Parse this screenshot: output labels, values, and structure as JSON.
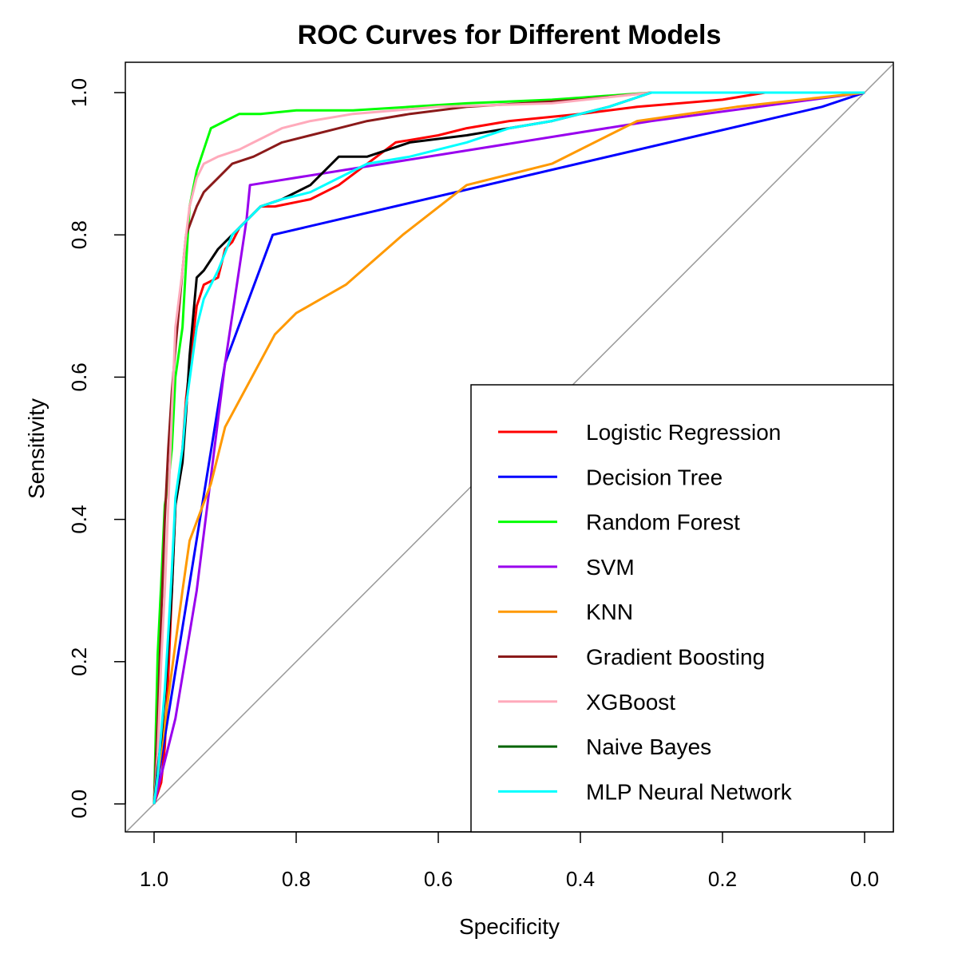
{
  "chart_data": {
    "type": "line",
    "title": "ROC Curves for Different Models",
    "xlabel": "Specificity",
    "ylabel": "Sensitivity",
    "xlim": [
      1.0,
      0.0
    ],
    "ylim": [
      0.0,
      1.0
    ],
    "x_reversed": true,
    "x_ticks": [
      "1.0",
      "0.8",
      "0.6",
      "0.4",
      "0.2",
      "0.0"
    ],
    "y_ticks": [
      "0.0",
      "0.2",
      "0.4",
      "0.6",
      "0.8",
      "1.0"
    ],
    "legend_position": "bottom-right",
    "reference_line": {
      "from": [
        1.0,
        0.0
      ],
      "to": [
        0.0,
        1.0
      ],
      "color": "#999999"
    },
    "series": [
      {
        "name": "Logistic Regression",
        "color": "#ff0000",
        "specificity": [
          1.0,
          0.99,
          0.985,
          0.98,
          0.975,
          0.97,
          0.96,
          0.955,
          0.94,
          0.93,
          0.91,
          0.9,
          0.89,
          0.88,
          0.87,
          0.85,
          0.83,
          0.78,
          0.74,
          0.7,
          0.66,
          0.6,
          0.56,
          0.5,
          0.4,
          0.32,
          0.2,
          0.14,
          0.0
        ],
        "sensitivity": [
          0.0,
          0.03,
          0.08,
          0.18,
          0.3,
          0.42,
          0.5,
          0.57,
          0.7,
          0.73,
          0.74,
          0.78,
          0.79,
          0.81,
          0.82,
          0.84,
          0.84,
          0.85,
          0.87,
          0.9,
          0.93,
          0.94,
          0.95,
          0.96,
          0.97,
          0.98,
          0.99,
          1.0,
          1.0
        ]
      },
      {
        "name": "Decision Tree",
        "color": "#0000ff",
        "specificity": [
          1.0,
          0.9,
          0.833,
          0.06,
          0.0
        ],
        "sensitivity": [
          0.0,
          0.62,
          0.8,
          0.98,
          1.0
        ]
      },
      {
        "name": "Random Forest",
        "color": "#00ff00",
        "specificity": [
          1.0,
          0.995,
          0.99,
          0.985,
          0.98,
          0.975,
          0.97,
          0.96,
          0.955,
          0.95,
          0.94,
          0.93,
          0.92,
          0.9,
          0.88,
          0.85,
          0.8,
          0.72,
          0.64,
          0.56,
          0.44,
          0.3,
          0.0
        ],
        "sensitivity": [
          0.0,
          0.21,
          0.31,
          0.42,
          0.45,
          0.5,
          0.6,
          0.67,
          0.76,
          0.84,
          0.89,
          0.92,
          0.95,
          0.96,
          0.97,
          0.97,
          0.975,
          0.975,
          0.98,
          0.985,
          0.99,
          1.0,
          1.0
        ]
      },
      {
        "name": "SVM",
        "color": "#9900ee",
        "specificity": [
          1.0,
          0.97,
          0.94,
          0.9,
          0.87,
          0.865,
          0.3,
          0.0
        ],
        "sensitivity": [
          0.0,
          0.12,
          0.3,
          0.62,
          0.82,
          0.87,
          0.96,
          1.0
        ]
      },
      {
        "name": "KNN",
        "color": "#ff9900",
        "specificity": [
          1.0,
          0.98,
          0.96,
          0.95,
          0.92,
          0.9,
          0.83,
          0.8,
          0.73,
          0.65,
          0.56,
          0.44,
          0.32,
          0.18,
          0.0
        ],
        "sensitivity": [
          0.0,
          0.15,
          0.3,
          0.37,
          0.45,
          0.53,
          0.66,
          0.69,
          0.73,
          0.8,
          0.87,
          0.9,
          0.96,
          0.98,
          1.0
        ]
      },
      {
        "name": "Gradient Boosting",
        "color": "#8b1a1a",
        "specificity": [
          1.0,
          0.995,
          0.99,
          0.985,
          0.98,
          0.975,
          0.97,
          0.96,
          0.955,
          0.94,
          0.93,
          0.91,
          0.89,
          0.86,
          0.84,
          0.82,
          0.78,
          0.74,
          0.7,
          0.64,
          0.56,
          0.4,
          0.3,
          0.0
        ],
        "sensitivity": [
          0.0,
          0.12,
          0.26,
          0.4,
          0.5,
          0.58,
          0.64,
          0.75,
          0.8,
          0.84,
          0.86,
          0.88,
          0.9,
          0.91,
          0.92,
          0.93,
          0.94,
          0.95,
          0.96,
          0.97,
          0.98,
          0.99,
          1.0,
          1.0
        ]
      },
      {
        "name": "XGBoost",
        "color": "#ffaabb",
        "specificity": [
          1.0,
          0.995,
          0.99,
          0.985,
          0.98,
          0.975,
          0.97,
          0.96,
          0.955,
          0.95,
          0.94,
          0.93,
          0.91,
          0.88,
          0.86,
          0.82,
          0.78,
          0.72,
          0.6,
          0.44,
          0.3,
          0.0
        ],
        "sensitivity": [
          0.0,
          0.07,
          0.2,
          0.3,
          0.42,
          0.55,
          0.67,
          0.75,
          0.8,
          0.84,
          0.88,
          0.9,
          0.91,
          0.92,
          0.93,
          0.95,
          0.96,
          0.97,
          0.98,
          0.985,
          1.0,
          1.0
        ]
      },
      {
        "name": "Naive Bayes",
        "color": "#000000",
        "legend_color": "#006400",
        "specificity": [
          1.0,
          0.995,
          0.99,
          0.985,
          0.98,
          0.975,
          0.97,
          0.96,
          0.955,
          0.95,
          0.94,
          0.93,
          0.91,
          0.89,
          0.87,
          0.85,
          0.82,
          0.78,
          0.74,
          0.7,
          0.64,
          0.56,
          0.44,
          0.36,
          0.3,
          0.0
        ],
        "sensitivity": [
          0.0,
          0.05,
          0.09,
          0.15,
          0.22,
          0.3,
          0.42,
          0.48,
          0.55,
          0.63,
          0.74,
          0.75,
          0.78,
          0.8,
          0.82,
          0.84,
          0.85,
          0.87,
          0.91,
          0.91,
          0.93,
          0.94,
          0.96,
          0.98,
          1.0,
          1.0
        ]
      },
      {
        "name": "MLP Neural Network",
        "color": "#00ffff",
        "specificity": [
          1.0,
          0.995,
          0.99,
          0.985,
          0.98,
          0.975,
          0.97,
          0.96,
          0.955,
          0.94,
          0.93,
          0.91,
          0.89,
          0.87,
          0.85,
          0.82,
          0.78,
          0.74,
          0.7,
          0.64,
          0.56,
          0.5,
          0.44,
          0.36,
          0.3,
          0.0
        ],
        "sensitivity": [
          0.0,
          0.04,
          0.1,
          0.16,
          0.24,
          0.33,
          0.43,
          0.5,
          0.56,
          0.67,
          0.71,
          0.75,
          0.8,
          0.82,
          0.84,
          0.85,
          0.86,
          0.88,
          0.9,
          0.91,
          0.93,
          0.95,
          0.96,
          0.98,
          1.0,
          1.0
        ]
      }
    ]
  }
}
